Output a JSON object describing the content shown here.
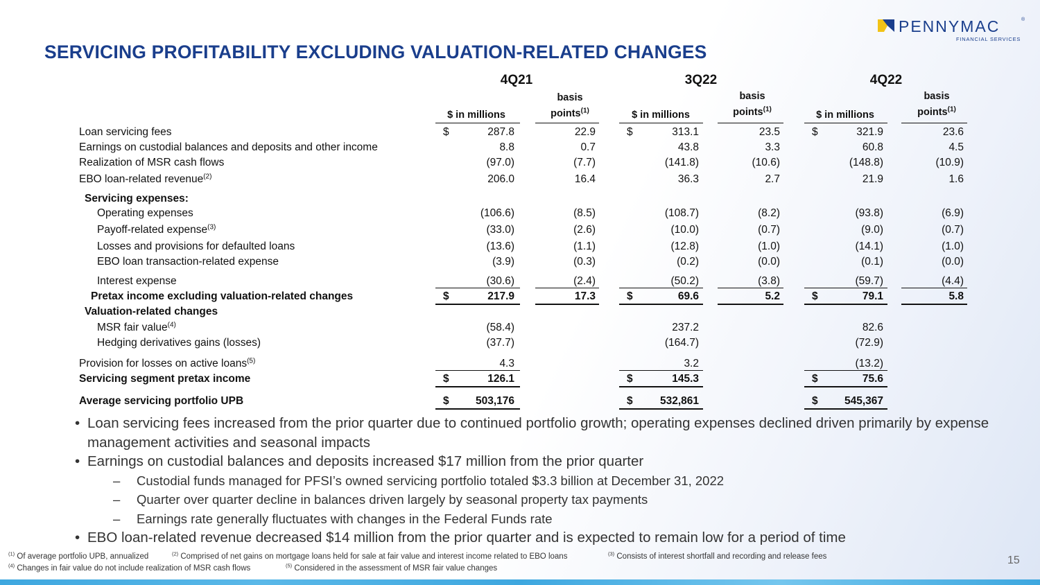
{
  "title": "SERVICING PROFITABILITY EXCLUDING VALUATION-RELATED CHANGES",
  "logo": {
    "name": "PENNYMAC",
    "reg": "®",
    "sub": "FINANCIAL SERVICES"
  },
  "periods": [
    "4Q21",
    "3Q22",
    "4Q22"
  ],
  "col_headers": {
    "millions": "$ in millions",
    "basis_line1": "basis",
    "basis_line2": "points",
    "basis_note": "(1)"
  },
  "rows": [
    {
      "label": "Loan servicing fees",
      "sup": "",
      "m": [
        "$",
        "287.8",
        "22.9",
        "$",
        "313.1",
        "23.5",
        "$",
        "321.9",
        "23.6"
      ]
    },
    {
      "label": "Earnings on custodial balances and deposits and other income",
      "sup": "",
      "m": [
        "",
        "8.8",
        "0.7",
        "",
        "43.8",
        "3.3",
        "",
        "60.8",
        "4.5"
      ]
    },
    {
      "label": "Realization of MSR cash flows",
      "sup": "",
      "m": [
        "",
        "(97.0)",
        "(7.7)",
        "",
        "(141.8)",
        "(10.6)",
        "",
        "(148.8)",
        "(10.9)"
      ]
    },
    {
      "label": "EBO loan-related revenue",
      "sup": "(2)",
      "m": [
        "",
        "206.0",
        "16.4",
        "",
        "36.3",
        "2.7",
        "",
        "21.9",
        "1.6"
      ]
    },
    {
      "label": "Servicing expenses:",
      "sup": "",
      "m": []
    },
    {
      "label": "Operating expenses",
      "sup": "",
      "m": [
        "",
        "(106.6)",
        "(8.5)",
        "",
        "(108.7)",
        "(8.2)",
        "",
        "(93.8)",
        "(6.9)"
      ]
    },
    {
      "label": "Payoff-related expense",
      "sup": "(3)",
      "m": [
        "",
        "(33.0)",
        "(2.6)",
        "",
        "(10.0)",
        "(0.7)",
        "",
        "(9.0)",
        "(0.7)"
      ]
    },
    {
      "label": "Losses and provisions for defaulted loans",
      "sup": "",
      "m": [
        "",
        "(13.6)",
        "(1.1)",
        "",
        "(12.8)",
        "(1.0)",
        "",
        "(14.1)",
        "(1.0)"
      ]
    },
    {
      "label": "EBO loan transaction-related expense",
      "sup": "",
      "m": [
        "",
        "(3.9)",
        "(0.3)",
        "",
        "(0.2)",
        "(0.0)",
        "",
        "(0.1)",
        "(0.0)"
      ]
    },
    {
      "label": "Interest expense",
      "sup": "",
      "m": [
        "",
        "(30.6)",
        "(2.4)",
        "",
        "(50.2)",
        "(3.8)",
        "",
        "(59.7)",
        "(4.4)"
      ]
    },
    {
      "label": "Pretax income excluding valuation-related changes",
      "sup": "",
      "m": [
        "$",
        "217.9",
        "17.3",
        "$",
        "69.6",
        "5.2",
        "$",
        "79.1",
        "5.8"
      ]
    },
    {
      "label": "Valuation-related changes",
      "sup": "",
      "m": []
    },
    {
      "label": "MSR fair value",
      "sup": "(4)",
      "m": [
        "",
        "(58.4)",
        "",
        "",
        "237.2",
        "",
        "",
        "82.6",
        ""
      ]
    },
    {
      "label": "Hedging derivatives gains (losses)",
      "sup": "",
      "m": [
        "",
        "(37.7)",
        "",
        "",
        "(164.7)",
        "",
        "",
        "(72.9)",
        ""
      ]
    },
    {
      "label": "Provision for losses on active loans",
      "sup": "(5)",
      "m": [
        "",
        "4.3",
        "",
        "",
        "3.2",
        "",
        "",
        "(13.2)",
        ""
      ]
    },
    {
      "label": "Servicing segment pretax income",
      "sup": "",
      "m": [
        "$",
        "126.1",
        "",
        "$",
        "145.3",
        "",
        "$",
        "75.6",
        ""
      ]
    },
    {
      "label": "Average servicing portfolio UPB",
      "sup": "",
      "m": [
        "$",
        "503,176",
        "",
        "$",
        "532,861",
        "",
        "$",
        "545,367",
        ""
      ]
    }
  ],
  "bullets": [
    {
      "dot": "•",
      "text": "Loan servicing fees increased from the prior quarter due to continued portfolio growth; operating expenses declined driven primarily by expense management activities and seasonal impacts"
    },
    {
      "dot": "•",
      "text": "Earnings on custodial balances and deposits increased $17 million from the prior quarter"
    },
    {
      "dot": "–",
      "text": "Custodial funds managed for PFSI’s owned servicing portfolio totaled $3.3 billion at December 31, 2022"
    },
    {
      "dot": "–",
      "text": "Quarter over quarter decline in balances driven largely by seasonal property tax payments"
    },
    {
      "dot": "–",
      "text": "Earnings rate generally fluctuates with changes in the Federal Funds rate"
    },
    {
      "dot": "•",
      "text": "EBO loan-related revenue decreased $14 million from the prior quarter and is expected to remain low for a period of time"
    }
  ],
  "footnotes": [
    {
      "num": "(1)",
      "text": "Of average portfolio UPB, annualized"
    },
    {
      "num": "(2)",
      "text": "Comprised of net gains on mortgage loans held for sale at fair value and interest income related to EBO loans"
    },
    {
      "num": "(3)",
      "text": "Consists of interest shortfall and recording and release fees"
    },
    {
      "num": "(4)",
      "text": "Changes in fair value do not include realization of MSR cash flows"
    },
    {
      "num": "(5)",
      "text": "Considered in the assessment of MSR fair value changes"
    }
  ],
  "page_number": "15"
}
